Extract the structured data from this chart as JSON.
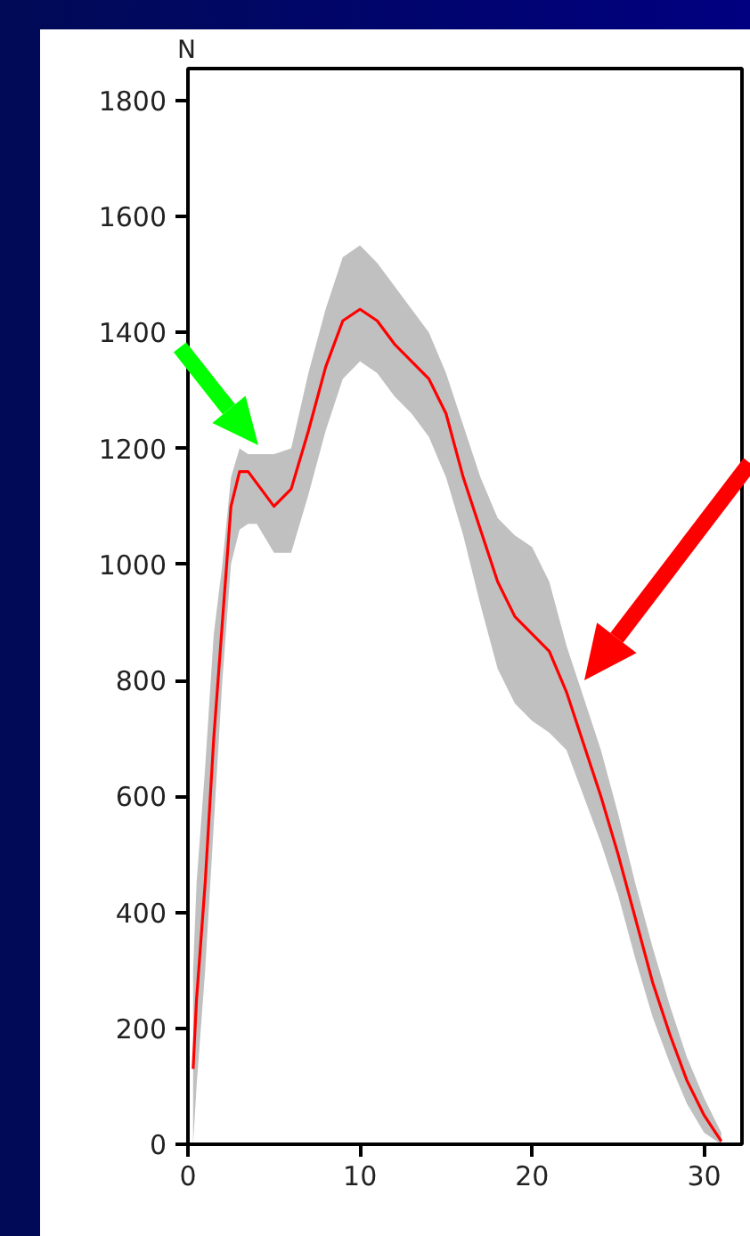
{
  "chart_data": {
    "type": "line",
    "ylabel": "N",
    "grid": false,
    "marker": "none",
    "line_style": "solid",
    "xlim": [
      0,
      32.2
    ],
    "ylim": [
      0,
      1855
    ],
    "xticks": [
      0,
      10,
      20,
      30
    ],
    "yticks": [
      0,
      200,
      400,
      600,
      800,
      1000,
      1200,
      1400,
      1600,
      1800
    ],
    "series": [
      {
        "color": "#ff0000",
        "x": [
          0.3,
          0.5,
          1,
          1.5,
          2,
          2.5,
          3,
          3.5,
          4,
          5,
          6,
          7,
          8,
          9,
          10,
          11,
          12,
          13,
          14,
          15,
          16,
          17,
          18,
          19,
          20,
          21,
          22,
          23,
          24,
          25,
          26,
          27,
          28,
          29,
          30,
          31
        ],
        "values": [
          130,
          250,
          450,
          700,
          900,
          1100,
          1160,
          1160,
          1140,
          1100,
          1130,
          1230,
          1340,
          1420,
          1440,
          1420,
          1380,
          1350,
          1320,
          1260,
          1150,
          1060,
          970,
          910,
          880,
          850,
          780,
          690,
          600,
          500,
          390,
          280,
          190,
          110,
          50,
          5
        ],
        "upper": [
          300,
          450,
          650,
          880,
          1000,
          1150,
          1200,
          1190,
          1190,
          1190,
          1200,
          1330,
          1440,
          1530,
          1550,
          1520,
          1480,
          1440,
          1400,
          1330,
          1240,
          1150,
          1080,
          1050,
          1030,
          970,
          860,
          770,
          680,
          570,
          450,
          340,
          240,
          150,
          80,
          20
        ],
        "lower": [
          0,
          100,
          300,
          550,
          800,
          1000,
          1060,
          1070,
          1070,
          1020,
          1020,
          1120,
          1230,
          1320,
          1350,
          1330,
          1290,
          1260,
          1220,
          1150,
          1050,
          930,
          820,
          760,
          730,
          710,
          680,
          600,
          520,
          430,
          320,
          220,
          140,
          70,
          20,
          0
        ]
      }
    ]
  }
}
